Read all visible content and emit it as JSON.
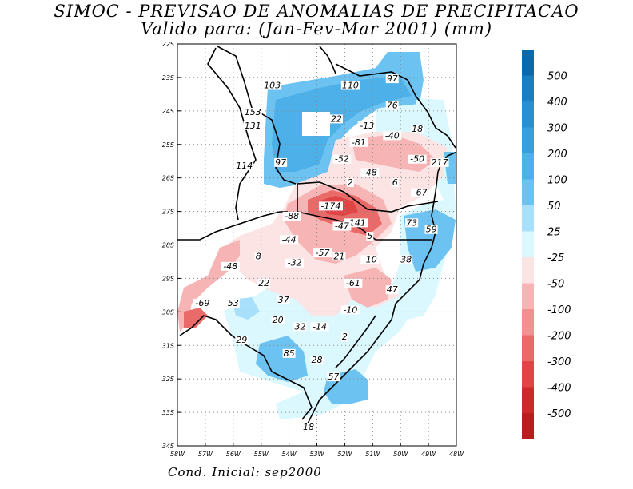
{
  "title_line1": "SIMOC - PREVISAO DE ANOMALIAS DE PRECIPITACAO",
  "title_line2": "Valido para: (Jan-Fev-Mar 2001) (mm)",
  "footer": "Cond. Inicial: sep2000",
  "map": {
    "lon_range": [
      -58,
      -48
    ],
    "lat_range": [
      -34,
      -22
    ],
    "lat_ticks": [
      "22S",
      "23S",
      "24S",
      "25S",
      "26S",
      "27S",
      "28S",
      "29S",
      "30S",
      "31S",
      "32S",
      "33S",
      "34S"
    ],
    "lon_ticks": [
      "58W",
      "57W",
      "56W",
      "55W",
      "54W",
      "53W",
      "52W",
      "51W",
      "50W",
      "49W",
      "48W"
    ],
    "grid": true
  },
  "colorbar": {
    "positive": [
      {
        "label": "500",
        "color": "#1a7fc0"
      },
      {
        "label": "400",
        "color": "#2890d0"
      },
      {
        "label": "300",
        "color": "#37a0dc"
      },
      {
        "label": "200",
        "color": "#4eb0e8"
      },
      {
        "label": "100",
        "color": "#6cc3f2"
      },
      {
        "label": "50",
        "color": "#a8e0fb"
      },
      {
        "label": "25",
        "color": "#dcf8ff"
      }
    ],
    "top_color": "#0b6aab",
    "negative": [
      {
        "label": "-25",
        "color": "#fde4e4"
      },
      {
        "label": "-50",
        "color": "#f7b4b4"
      },
      {
        "label": "-100",
        "color": "#f19191"
      },
      {
        "label": "-200",
        "color": "#ea6a6a"
      },
      {
        "label": "-300",
        "color": "#e04444"
      },
      {
        "label": "-400",
        "color": "#cc2a2a"
      },
      {
        "label": "-500",
        "color": "#b81c1c"
      }
    ],
    "bottom_color": "#a81414"
  },
  "value_labels": [
    {
      "text": "103",
      "lon": -54.6,
      "lat": -23.3
    },
    {
      "text": "110",
      "lon": -51.8,
      "lat": -23.3
    },
    {
      "text": "97",
      "lon": -50.3,
      "lat": -23.1
    },
    {
      "text": "76",
      "lon": -50.3,
      "lat": -23.9
    },
    {
      "text": "153",
      "lon": -55.3,
      "lat": -24.1
    },
    {
      "text": "131",
      "lon": -55.3,
      "lat": -24.5
    },
    {
      "text": "22",
      "lon": -52.3,
      "lat": -24.3
    },
    {
      "text": "-13",
      "lon": -51.2,
      "lat": -24.5
    },
    {
      "text": "18",
      "lon": -49.4,
      "lat": -24.6
    },
    {
      "text": "-40",
      "lon": -50.3,
      "lat": -24.8
    },
    {
      "text": "-81",
      "lon": -51.5,
      "lat": -25.0
    },
    {
      "text": "-52",
      "lon": -52.1,
      "lat": -25.5
    },
    {
      "text": "-50",
      "lon": -49.4,
      "lat": -25.5
    },
    {
      "text": "217",
      "lon": -48.6,
      "lat": -25.6
    },
    {
      "text": "114",
      "lon": -55.6,
      "lat": -25.7
    },
    {
      "text": "97",
      "lon": -54.3,
      "lat": -25.6
    },
    {
      "text": "-48",
      "lon": -51.1,
      "lat": -25.9
    },
    {
      "text": "2",
      "lon": -51.8,
      "lat": -26.2
    },
    {
      "text": "6",
      "lon": -50.2,
      "lat": -26.2
    },
    {
      "text": "-67",
      "lon": -49.3,
      "lat": -26.5
    },
    {
      "text": "-174",
      "lon": -52.5,
      "lat": -26.9
    },
    {
      "text": "-88",
      "lon": -53.9,
      "lat": -27.2
    },
    {
      "text": "-141",
      "lon": -51.6,
      "lat": -27.4
    },
    {
      "text": "-47",
      "lon": -52.1,
      "lat": -27.5
    },
    {
      "text": "73",
      "lon": -49.6,
      "lat": -27.4
    },
    {
      "text": "59",
      "lon": -48.9,
      "lat": -27.6
    },
    {
      "text": "5",
      "lon": -51.1,
      "lat": -27.8
    },
    {
      "text": "-44",
      "lon": -54.0,
      "lat": -27.9
    },
    {
      "text": "-57",
      "lon": -52.8,
      "lat": -28.3
    },
    {
      "text": "21",
      "lon": -52.2,
      "lat": -28.4
    },
    {
      "text": "-10",
      "lon": -51.1,
      "lat": -28.5
    },
    {
      "text": "38",
      "lon": -49.8,
      "lat": -28.5
    },
    {
      "text": "8",
      "lon": -55.1,
      "lat": -28.4
    },
    {
      "text": "-32",
      "lon": -53.8,
      "lat": -28.6
    },
    {
      "text": "-48",
      "lon": -56.1,
      "lat": -28.7
    },
    {
      "text": "-61",
      "lon": -51.7,
      "lat": -29.2
    },
    {
      "text": "22",
      "lon": -54.9,
      "lat": -29.2
    },
    {
      "text": "47",
      "lon": -50.3,
      "lat": -29.4
    },
    {
      "text": "37",
      "lon": -54.2,
      "lat": -29.7
    },
    {
      "text": "-69",
      "lon": -57.1,
      "lat": -29.8
    },
    {
      "text": "53",
      "lon": -56.0,
      "lat": -29.8
    },
    {
      "text": "-10",
      "lon": -51.8,
      "lat": -30.0
    },
    {
      "text": "20",
      "lon": -54.4,
      "lat": -30.3
    },
    {
      "text": "32",
      "lon": -53.6,
      "lat": -30.5
    },
    {
      "text": "-14",
      "lon": -52.9,
      "lat": -30.5
    },
    {
      "text": "2",
      "lon": -52.0,
      "lat": -30.8
    },
    {
      "text": "29",
      "lon": -55.7,
      "lat": -30.9
    },
    {
      "text": "85",
      "lon": -54.0,
      "lat": -31.3
    },
    {
      "text": "28",
      "lon": -53.0,
      "lat": -31.5
    },
    {
      "text": "57",
      "lon": -52.4,
      "lat": -32.0
    },
    {
      "text": "18",
      "lon": -53.3,
      "lat": -33.5
    }
  ]
}
